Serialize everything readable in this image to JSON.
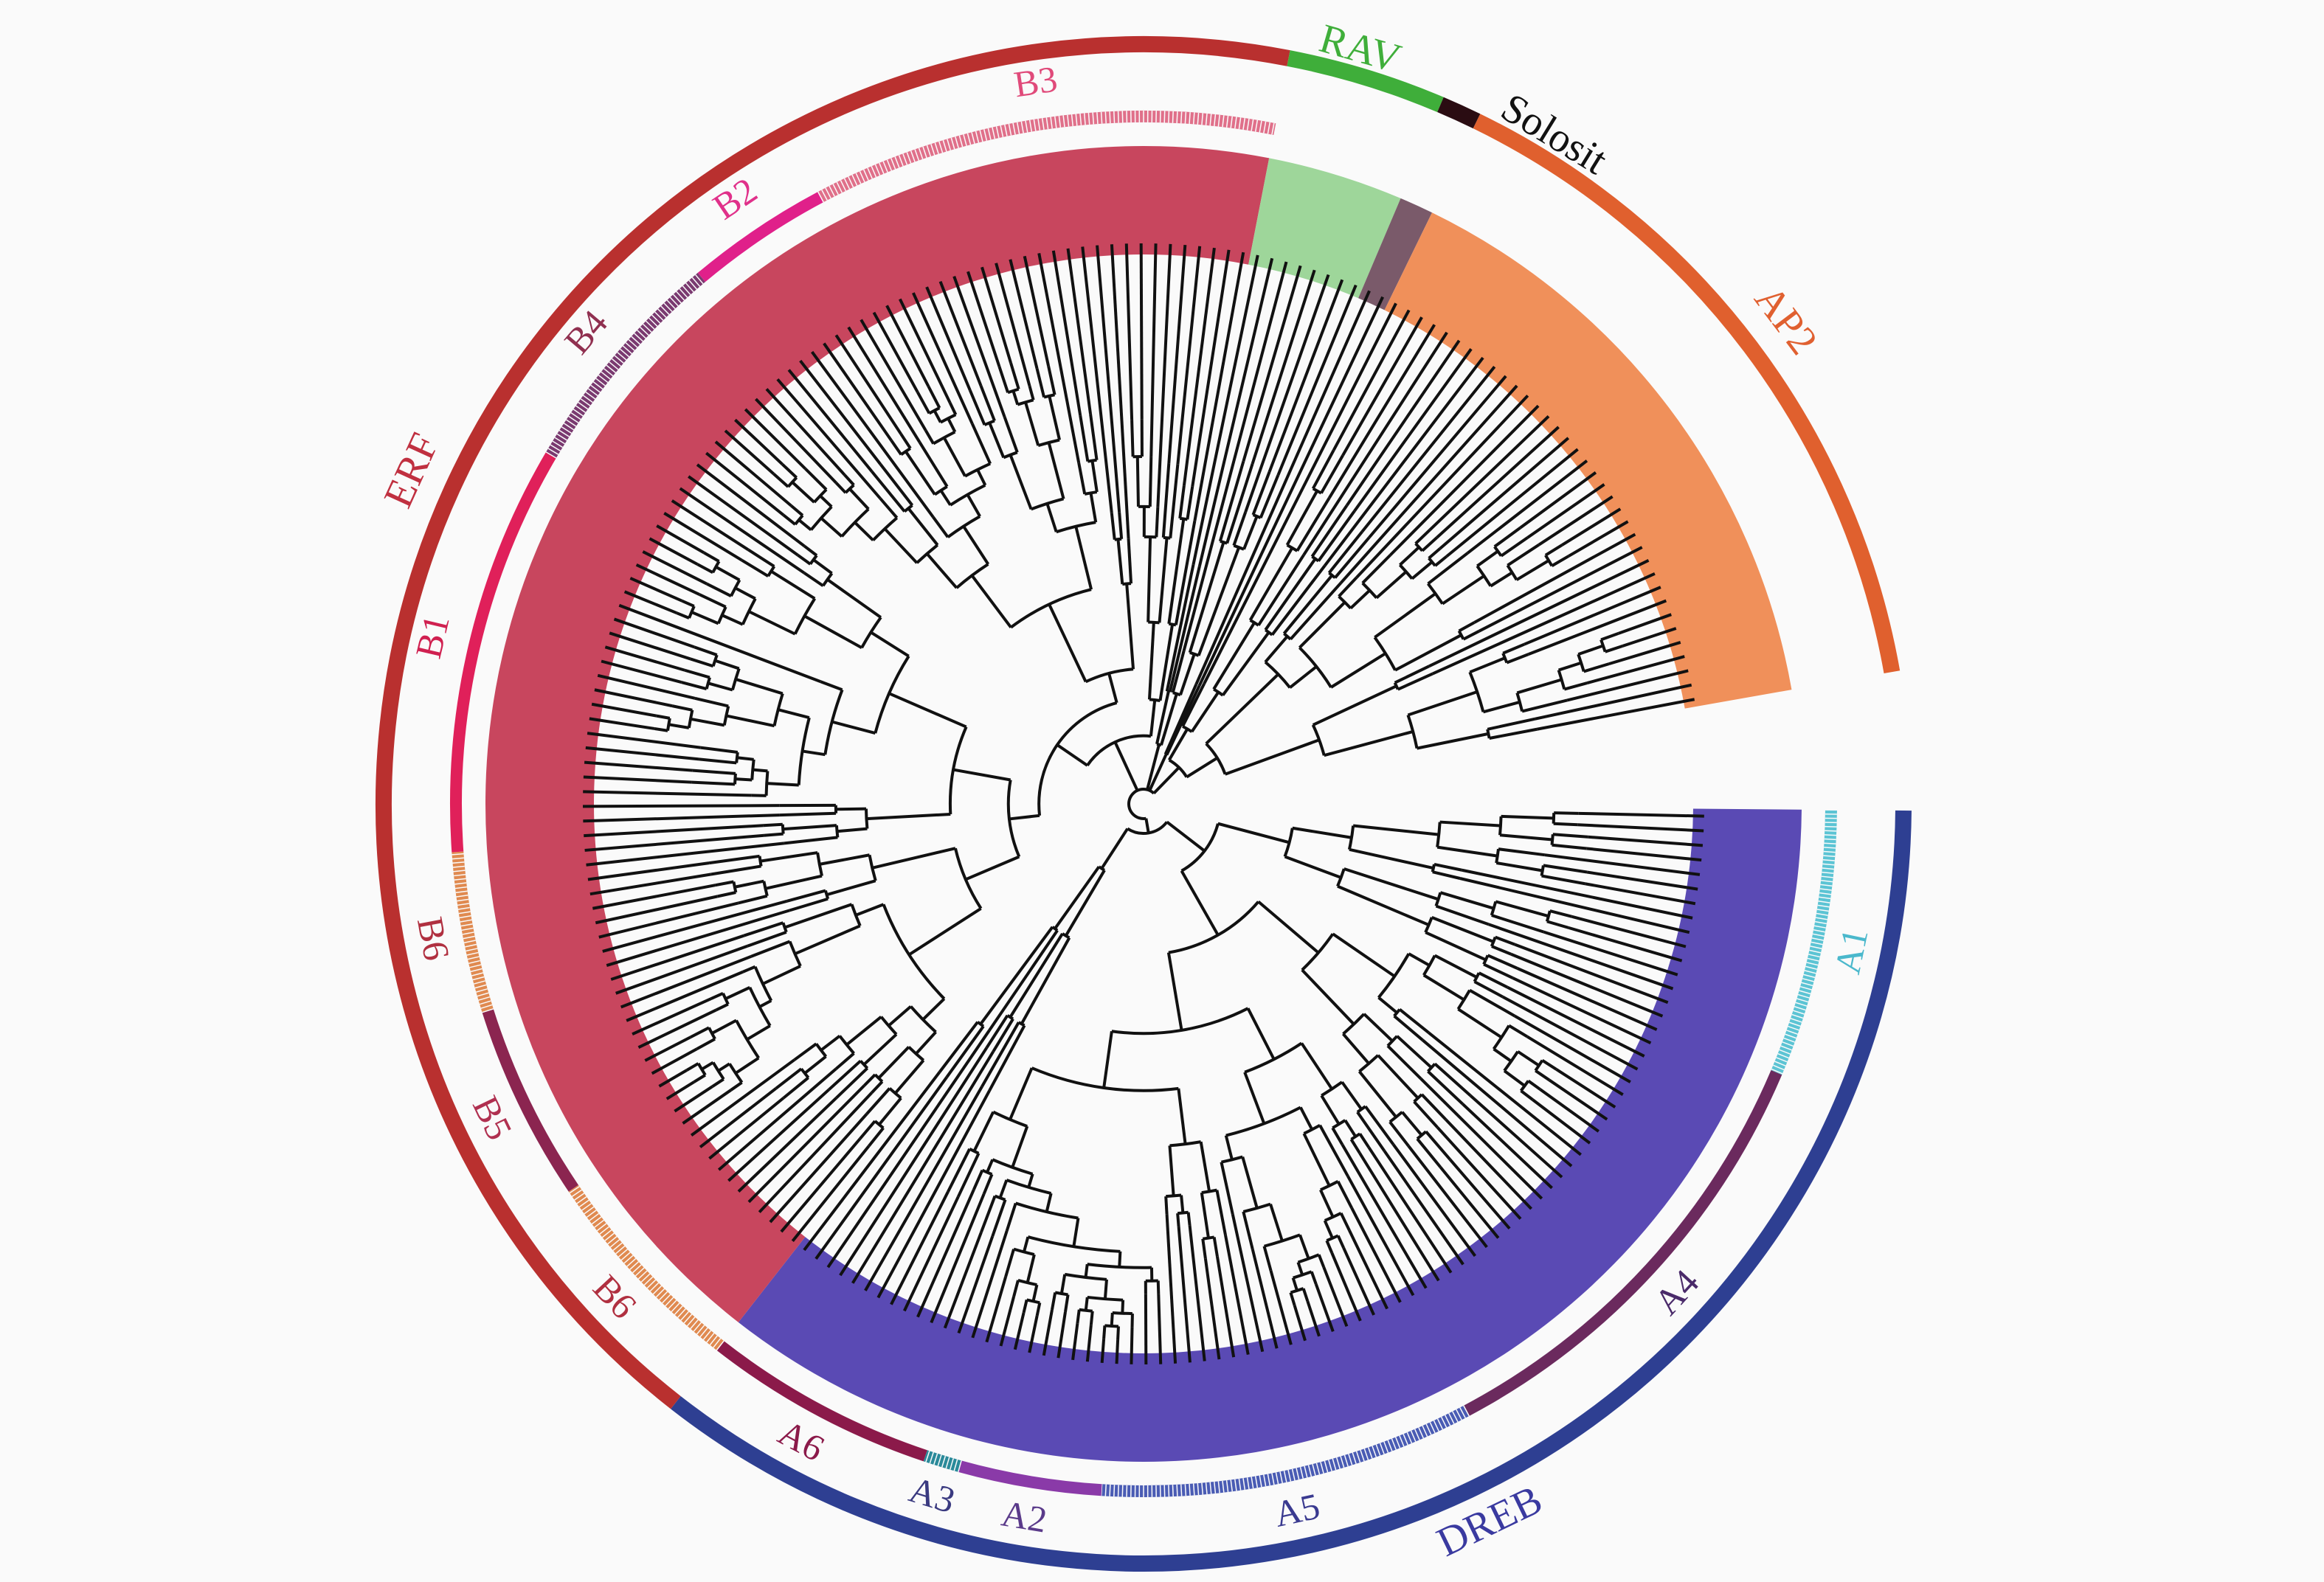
{
  "families": [
    {
      "name": "DREB",
      "leaves": 85,
      "color": "#2e3f92",
      "label_color": "#3a3aa0",
      "band": "#5a4ab4"
    },
    {
      "name": "ERF",
      "leaves": 102,
      "color": "#b9302f",
      "label_color": "#c03040",
      "band": "#c8465e"
    },
    {
      "name": "RAV",
      "leaves": 8,
      "color": "#3fae3a",
      "label_color": "#3fae3a",
      "band": "#9ed69a"
    },
    {
      "name": "Solosit",
      "leaves": 2,
      "color": "#2a0c12",
      "label_color": "#111111",
      "band": "#7a5a6a"
    },
    {
      "name": "AP2",
      "leaves": 36,
      "color": "#e0602e",
      "label_color": "#e06030",
      "band": "#f0905a"
    }
  ],
  "gap_leaves": 7,
  "subgroups": [
    {
      "name": "A1",
      "leaves": 15,
      "color": "#5cc4d4",
      "label_color": "#4ab8cc",
      "striped": true
    },
    {
      "name": "A4",
      "leaves": 26,
      "color": "#6b2a5e",
      "label_color": "#4a2a6a",
      "striped": false
    },
    {
      "name": "A5",
      "leaves": 21,
      "color": "#4a5cb4",
      "label_color": "#3a3a90",
      "striped": true
    },
    {
      "name": "A2",
      "leaves": 8,
      "color": "#8a3aa8",
      "label_color": "#5a3a8a",
      "striped": false
    },
    {
      "name": "A3",
      "leaves": 2,
      "color": "#2a8a9a",
      "label_color": "#3a3a80",
      "striped": true
    },
    {
      "name": "A6",
      "leaves": 13,
      "color": "#8b1a4a",
      "label_color": "#8b1a4a",
      "striped": false
    },
    {
      "name": "B6",
      "leaves": 12,
      "color": "#e08a50",
      "label_color": "#b03040",
      "striped": true
    },
    {
      "name": "B5",
      "leaves": 11,
      "color": "#8b2550",
      "label_color": "#b03050",
      "striped": false
    },
    {
      "name": "B6",
      "leaves": 9,
      "color": "#e08a50",
      "label_color": "#b03040",
      "striped": true
    },
    {
      "name": "B1",
      "leaves": 23,
      "color": "#e0205a",
      "label_color": "#d02050",
      "striped": false
    },
    {
      "name": "B4",
      "leaves": 13,
      "color": "#7a3a70",
      "label_color": "#903050",
      "striped": true
    },
    {
      "name": "B2",
      "leaves": 8,
      "color": "#e0208a",
      "label_color": "#e0308a",
      "striped": false
    },
    {
      "name": "B3",
      "leaves": 26,
      "color": "#e0708a",
      "label_color": "#e04a7a",
      "striped": true
    }
  ]
}
